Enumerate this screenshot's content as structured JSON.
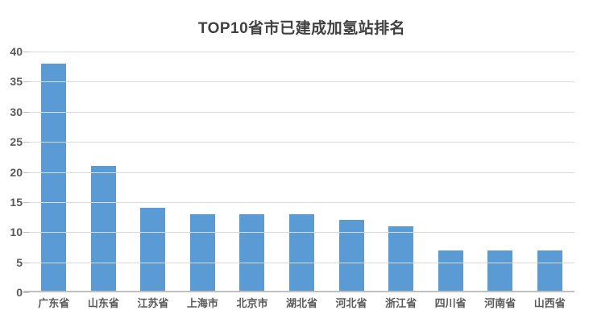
{
  "colors": {
    "bar": "#5b9bd5",
    "gridline": "#d9d9d9",
    "axis_line": "#bfbfbf",
    "title_text": "#404040",
    "axis_text": "#595959",
    "background": "#ffffff"
  },
  "chart_data": {
    "type": "bar",
    "title": "TOP10省市已建成加氢站排名",
    "categories": [
      "广东省",
      "山东省",
      "江苏省",
      "上海市",
      "北京市",
      "湖北省",
      "河北省",
      "浙江省",
      "四川省",
      "河南省",
      "山西省"
    ],
    "values": [
      38,
      21,
      14,
      13,
      13,
      13,
      12,
      11,
      7,
      7,
      7
    ],
    "xlabel": "",
    "ylabel": "",
    "ylim": [
      0,
      40
    ],
    "yticks": [
      0,
      5,
      10,
      15,
      20,
      25,
      30,
      35,
      40
    ],
    "grid": true,
    "legend_position": "none"
  }
}
